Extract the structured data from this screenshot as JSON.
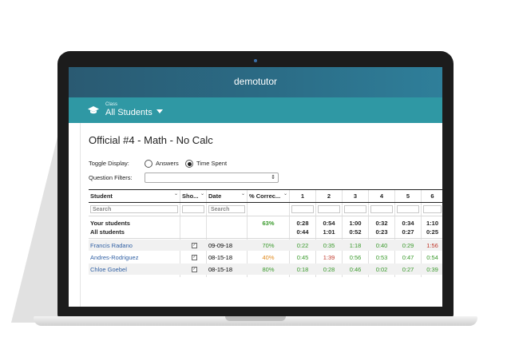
{
  "app": {
    "title": "demotutor"
  },
  "class_selector": {
    "label": "Class",
    "value": "All Students"
  },
  "page": {
    "title": "Official #4 - Math - No Calc"
  },
  "toggle": {
    "label": "Toggle Display:",
    "options": [
      "Answers",
      "Time Spent"
    ],
    "selected": "Time Spent"
  },
  "filters": {
    "label": "Question Filters:",
    "value": ""
  },
  "table": {
    "headers": {
      "student": "Student",
      "show": "Sho...",
      "date": "Date",
      "pct": "% Correc..."
    },
    "question_numbers": [
      "1",
      "2",
      "3",
      "4",
      "5",
      "6"
    ],
    "search_placeholder": "Search",
    "summary": {
      "your_label": "Your students",
      "all_label": "All students",
      "your_pct": "63%",
      "your_times": [
        "0:28",
        "0:54",
        "1:00",
        "0:32",
        "0:34",
        "1:10"
      ],
      "all_times": [
        "0:44",
        "1:01",
        "0:52",
        "0:23",
        "0:27",
        "0:25"
      ]
    },
    "rows": [
      {
        "name": "Francis Radano",
        "checked": true,
        "date": "09-09-18",
        "pct": "70%",
        "pct_status": "green",
        "times": [
          "0:22",
          "0:35",
          "1:18",
          "0:40",
          "0:29",
          "1:56"
        ],
        "status": [
          "green",
          "green",
          "green",
          "green",
          "green",
          "red"
        ]
      },
      {
        "name": "Andres-Rodriguez",
        "checked": true,
        "date": "08-15-18",
        "pct": "40%",
        "pct_status": "orange",
        "times": [
          "0:45",
          "1:39",
          "0:56",
          "0:53",
          "0:47",
          "0:54"
        ],
        "status": [
          "green",
          "red",
          "green",
          "green",
          "green",
          "green"
        ]
      },
      {
        "name": "Chloe Goebel",
        "checked": true,
        "date": "08-15-18",
        "pct": "80%",
        "pct_status": "green",
        "times": [
          "0:18",
          "0:28",
          "0:46",
          "0:02",
          "0:27",
          "0:39"
        ],
        "status": [
          "green",
          "green",
          "green",
          "green",
          "green",
          "green"
        ]
      }
    ]
  },
  "colors": {
    "header": "#2b6c86",
    "class_bar": "#2f98a4",
    "good": "#3a9a2c",
    "bad": "#c0392b",
    "warn": "#e08a1e",
    "link": "#2f5fa3"
  }
}
